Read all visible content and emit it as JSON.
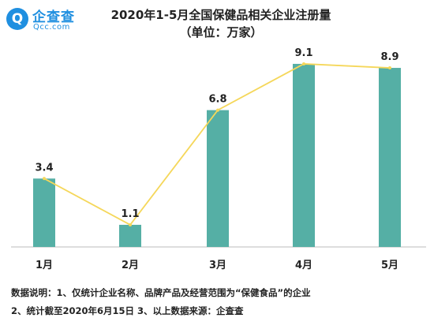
{
  "brand": {
    "logo_cn": "企查查",
    "logo_en": "Qcc.com",
    "logo_mark": "Q"
  },
  "title_line1": "2020年1-5月全国保健品相关企业注册量",
  "title_line2": "（单位：万家）",
  "notes": {
    "line1": "数据说明：1、仅统计企业名称、品牌产品及经营范围为“保健食品”的企业",
    "line2": "2、统计截至2020年6月15日    3、以上数据来源：企查查"
  },
  "colors": {
    "bar": "#55afa5",
    "line": "#f5d75a",
    "axis": "#bbbbbb",
    "brand": "#1f8fe0"
  },
  "chart_data": {
    "type": "bar",
    "categories": [
      "1月",
      "2月",
      "3月",
      "4月",
      "5月"
    ],
    "values": [
      3.4,
      1.1,
      6.8,
      9.1,
      8.9
    ],
    "value_labels": [
      "3.4",
      "1.1",
      "6.8",
      "9.1",
      "8.9"
    ],
    "overlay_line": true,
    "title": "2020年1-5月全国保健品相关企业注册量",
    "unit": "（单位：万家）",
    "ylim": [
      0,
      10
    ],
    "grid": false,
    "legend": "none"
  }
}
